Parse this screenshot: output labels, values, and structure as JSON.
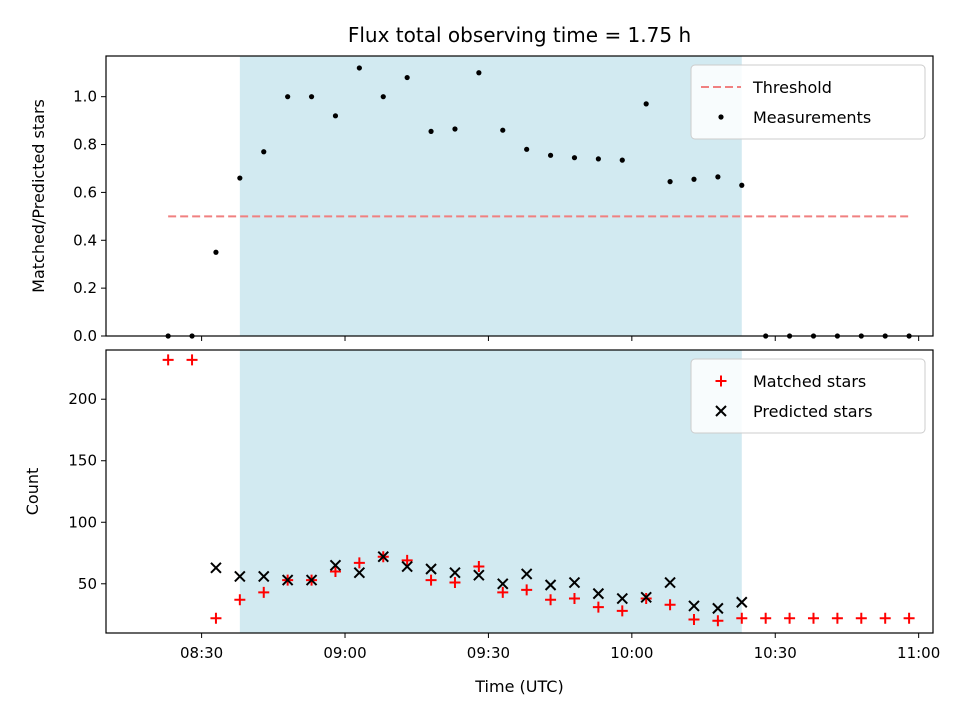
{
  "chart_data": [
    {
      "type": "scatter",
      "title": "Flux total observing time = 1.75 h",
      "ylabel": "Matched/Predicted stars",
      "xlabel": "",
      "xlim": [
        "08:10",
        "11:03"
      ],
      "ylim": [
        0,
        1.17
      ],
      "yticks": [
        "0.0",
        "0.2",
        "0.4",
        "0.6",
        "0.8",
        "1.0"
      ],
      "legend_position": "top-right",
      "grid": false,
      "shaded_interval": [
        "08:38",
        "10:23"
      ],
      "shade_color": "#add8e6",
      "threshold": {
        "name": "Threshold",
        "value": 0.5,
        "x_range": [
          "08:23",
          "10:58"
        ],
        "color": "#f08080",
        "style": "dashed"
      },
      "series": [
        {
          "name": "Measurements",
          "marker": "dot",
          "color": "#000000",
          "points": [
            {
              "x": "08:23",
              "y": 0.0
            },
            {
              "x": "08:28",
              "y": 0.0
            },
            {
              "x": "08:33",
              "y": 0.35
            },
            {
              "x": "08:38",
              "y": 0.66
            },
            {
              "x": "08:43",
              "y": 0.77
            },
            {
              "x": "08:48",
              "y": 1.0
            },
            {
              "x": "08:53",
              "y": 1.0
            },
            {
              "x": "08:58",
              "y": 0.92
            },
            {
              "x": "09:03",
              "y": 1.12
            },
            {
              "x": "09:08",
              "y": 1.0
            },
            {
              "x": "09:13",
              "y": 1.08
            },
            {
              "x": "09:18",
              "y": 0.855
            },
            {
              "x": "09:23",
              "y": 0.865
            },
            {
              "x": "09:28",
              "y": 1.1
            },
            {
              "x": "09:33",
              "y": 0.86
            },
            {
              "x": "09:38",
              "y": 0.78
            },
            {
              "x": "09:43",
              "y": 0.755
            },
            {
              "x": "09:48",
              "y": 0.745
            },
            {
              "x": "09:53",
              "y": 0.74
            },
            {
              "x": "09:58",
              "y": 0.735
            },
            {
              "x": "10:03",
              "y": 0.97
            },
            {
              "x": "10:08",
              "y": 0.645
            },
            {
              "x": "10:13",
              "y": 0.655
            },
            {
              "x": "10:18",
              "y": 0.665
            },
            {
              "x": "10:23",
              "y": 0.63
            },
            {
              "x": "10:28",
              "y": 0.0
            },
            {
              "x": "10:33",
              "y": 0.0
            },
            {
              "x": "10:38",
              "y": 0.0
            },
            {
              "x": "10:43",
              "y": 0.0
            },
            {
              "x": "10:48",
              "y": 0.0
            },
            {
              "x": "10:53",
              "y": 0.0
            },
            {
              "x": "10:58",
              "y": 0.0
            }
          ]
        }
      ]
    },
    {
      "type": "scatter",
      "title": "",
      "xlabel": "Time (UTC)",
      "ylabel": "Count",
      "xlim": [
        "08:10",
        "11:03"
      ],
      "ylim": [
        10,
        240
      ],
      "yticks": [
        "50",
        "100",
        "150",
        "200"
      ],
      "xticks": [
        "08:30",
        "09:00",
        "09:30",
        "10:00",
        "10:30",
        "11:00"
      ],
      "legend_position": "top-right",
      "grid": false,
      "shaded_interval": [
        "08:38",
        "10:23"
      ],
      "shade_color": "#add8e6",
      "series": [
        {
          "name": "Matched stars",
          "marker": "plus",
          "color": "#ff0000",
          "points": [
            {
              "x": "08:23",
              "y": 232
            },
            {
              "x": "08:28",
              "y": 232
            },
            {
              "x": "08:33",
              "y": 22
            },
            {
              "x": "08:38",
              "y": 37
            },
            {
              "x": "08:43",
              "y": 43
            },
            {
              "x": "08:48",
              "y": 53
            },
            {
              "x": "08:53",
              "y": 53
            },
            {
              "x": "08:58",
              "y": 60
            },
            {
              "x": "09:03",
              "y": 67
            },
            {
              "x": "09:08",
              "y": 72
            },
            {
              "x": "09:13",
              "y": 69
            },
            {
              "x": "09:18",
              "y": 53
            },
            {
              "x": "09:23",
              "y": 51
            },
            {
              "x": "09:28",
              "y": 64
            },
            {
              "x": "09:33",
              "y": 43
            },
            {
              "x": "09:38",
              "y": 45
            },
            {
              "x": "09:43",
              "y": 37
            },
            {
              "x": "09:48",
              "y": 38
            },
            {
              "x": "09:53",
              "y": 31
            },
            {
              "x": "09:58",
              "y": 28
            },
            {
              "x": "10:03",
              "y": 38
            },
            {
              "x": "10:08",
              "y": 33
            },
            {
              "x": "10:13",
              "y": 21
            },
            {
              "x": "10:18",
              "y": 20
            },
            {
              "x": "10:23",
              "y": 22
            },
            {
              "x": "10:28",
              "y": 22
            },
            {
              "x": "10:33",
              "y": 22
            },
            {
              "x": "10:38",
              "y": 22
            },
            {
              "x": "10:43",
              "y": 22
            },
            {
              "x": "10:48",
              "y": 22
            },
            {
              "x": "10:53",
              "y": 22
            },
            {
              "x": "10:58",
              "y": 22
            }
          ]
        },
        {
          "name": "Predicted stars",
          "marker": "x",
          "color": "#000000",
          "points": [
            {
              "x": "08:33",
              "y": 63
            },
            {
              "x": "08:38",
              "y": 56
            },
            {
              "x": "08:43",
              "y": 56
            },
            {
              "x": "08:48",
              "y": 53
            },
            {
              "x": "08:53",
              "y": 53
            },
            {
              "x": "08:58",
              "y": 65
            },
            {
              "x": "09:03",
              "y": 59
            },
            {
              "x": "09:08",
              "y": 72
            },
            {
              "x": "09:13",
              "y": 64
            },
            {
              "x": "09:18",
              "y": 62
            },
            {
              "x": "09:23",
              "y": 59
            },
            {
              "x": "09:28",
              "y": 57
            },
            {
              "x": "09:33",
              "y": 50
            },
            {
              "x": "09:38",
              "y": 58
            },
            {
              "x": "09:43",
              "y": 49
            },
            {
              "x": "09:48",
              "y": 51
            },
            {
              "x": "09:53",
              "y": 42
            },
            {
              "x": "09:58",
              "y": 38
            },
            {
              "x": "10:03",
              "y": 39
            },
            {
              "x": "10:08",
              "y": 51
            },
            {
              "x": "10:13",
              "y": 32
            },
            {
              "x": "10:18",
              "y": 30
            },
            {
              "x": "10:23",
              "y": 35
            }
          ]
        }
      ]
    }
  ]
}
